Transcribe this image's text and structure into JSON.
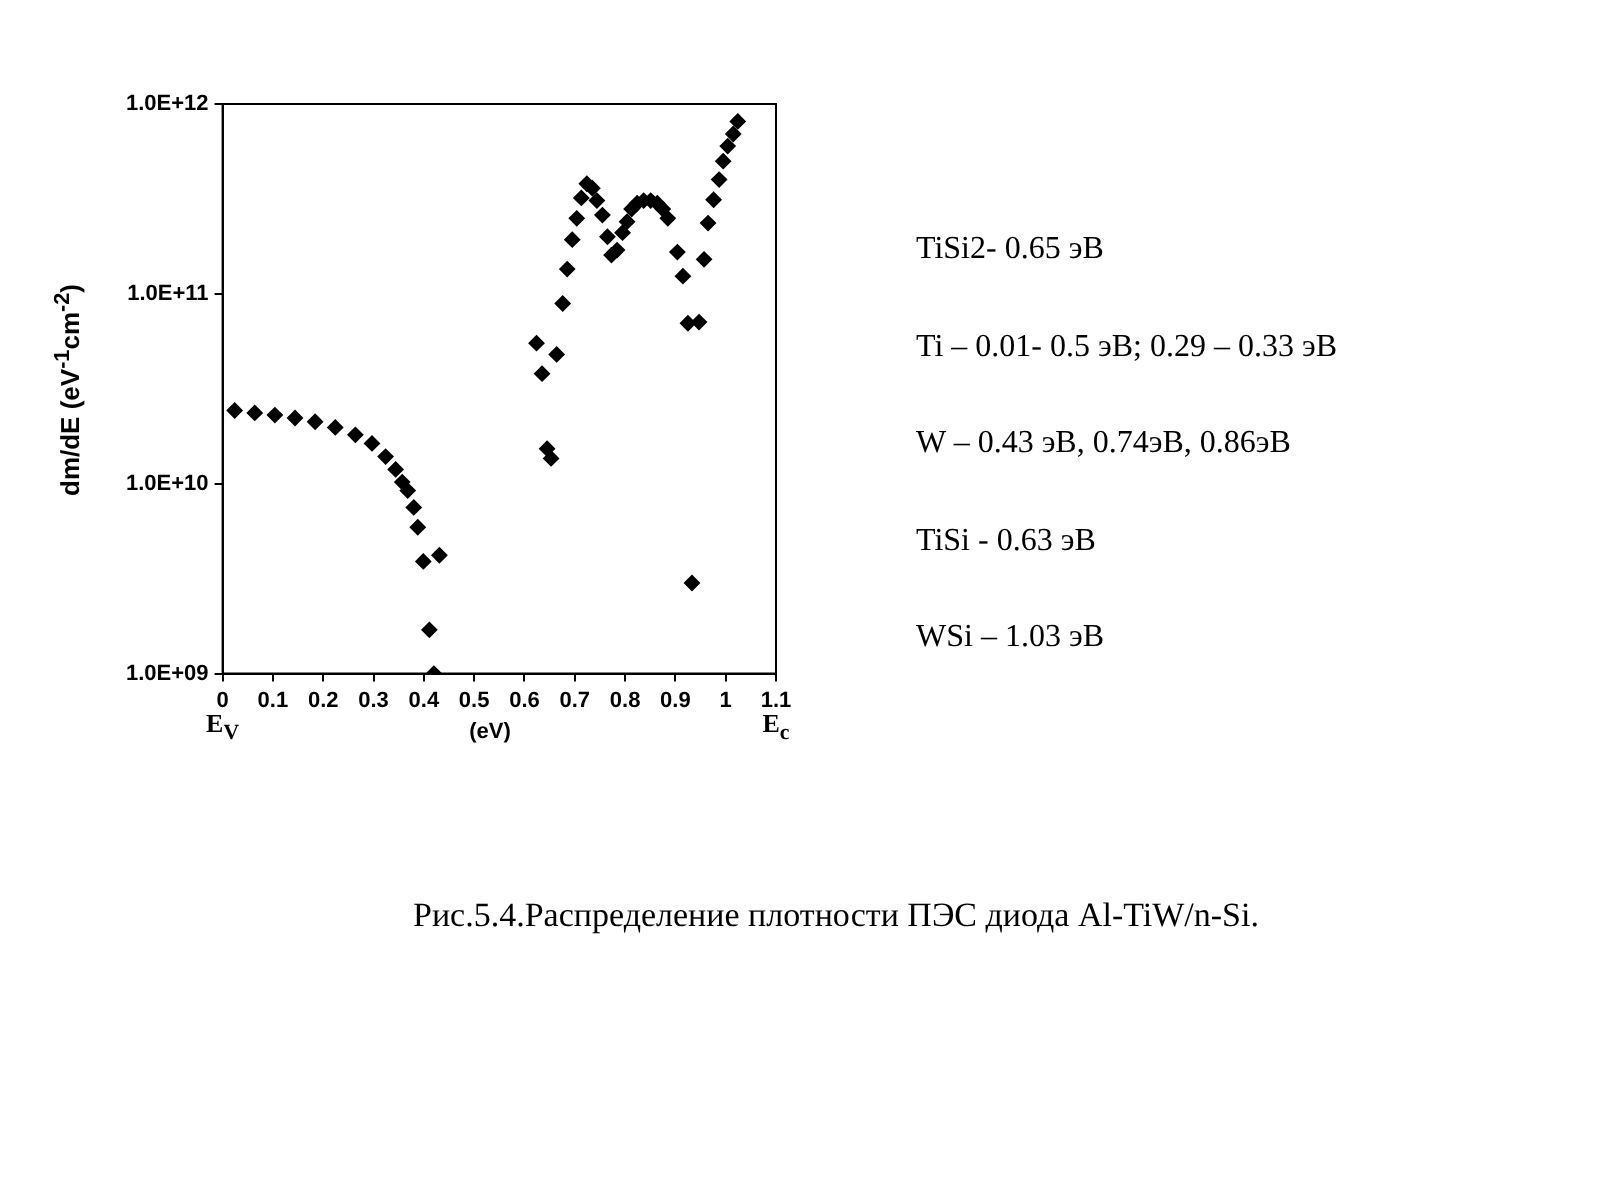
{
  "chart_data": {
    "type": "scatter",
    "xlabel": "(eV)",
    "ylabel": "dm/dE (eV$^{-1}$cm$^{-2}$)",
    "x": [
      0.024,
      0.064,
      0.104,
      0.144,
      0.184,
      0.224,
      0.264,
      0.297,
      0.324,
      0.344,
      0.357,
      0.368,
      0.38,
      0.388,
      0.399,
      0.411,
      0.42,
      0.431,
      0.624,
      0.635,
      0.645,
      0.653,
      0.664,
      0.676,
      0.685,
      0.695,
      0.704,
      0.713,
      0.724,
      0.735,
      0.744,
      0.755,
      0.765,
      0.773,
      0.784,
      0.795,
      0.804,
      0.813,
      0.824,
      0.837,
      0.851,
      0.864,
      0.875,
      0.885,
      0.904,
      0.915,
      0.925,
      0.933,
      0.947,
      0.957,
      0.965,
      0.976,
      0.987,
      0.995,
      1.004,
      1.015,
      1.024
    ],
    "series": [
      {
        "color": "#000000",
        "values": [
          24300000000.0,
          23600000000.0,
          23000000000.0,
          22200000000.0,
          21200000000.0,
          19800000000.0,
          18100000000.0,
          16300000000.0,
          13900000000.0,
          11900000000.0,
          10200000000.0,
          9200000000.0,
          7500000000.0,
          5900000000.0,
          3900000000.0,
          1700000000.0,
          1000000000.0,
          4200000000.0,
          55000000000.0,
          38000000000.0,
          15300000000.0,
          13600000000.0,
          48000000000.0,
          89000000000.0,
          135000000000.0,
          193000000000.0,
          250000000000.0,
          320000000000.0,
          380000000000.0,
          360000000000.0,
          310000000000.0,
          260000000000.0,
          200000000000.0,
          160000000000.0,
          170000000000.0,
          210000000000.0,
          240000000000.0,
          280000000000.0,
          300000000000.0,
          310000000000.0,
          310000000000.0,
          300000000000.0,
          280000000000.0,
          250000000000.0,
          166000000000.0,
          124000000000.0,
          70000000000.0,
          3000000000.0,
          71000000000.0,
          152000000000.0,
          236000000000.0,
          313000000000.0,
          400000000000.0,
          500000000000.0,
          600000000000.0,
          695000000000.0,
          810000000000.0
        ]
      }
    ],
    "xlim": [
      0,
      1.1
    ],
    "xticks": [
      0,
      0.1,
      0.2,
      0.3,
      0.4,
      0.5,
      0.6,
      0.7,
      0.8,
      0.9,
      1,
      1.1
    ],
    "ylim": [
      1000000000.0,
      1000000000000.0
    ],
    "yticks": [
      {
        "value": 1000000000.0,
        "label": "1.0E+09"
      },
      {
        "value": 10000000000.0,
        "label": "1.0E+10"
      },
      {
        "value": 100000000000.0,
        "label": "1.0E+11"
      },
      {
        "value": 1000000000000.0,
        "label": "1.0E+12"
      }
    ],
    "log": "y",
    "grid": false,
    "legend": false,
    "marker": "diamond",
    "annotations": [
      "E$_{V}$",
      "E$_{c}$",
      "TiSi2- 0.65 эВ",
      "Ti – 0.01- 0.5 эВ; 0.29 – 0.33 эВ",
      "W – 0.43 эВ, 0.74эВ, 0.86эВ",
      "TiSi -  0.63 эВ",
      "WSi – 1.03 эВ",
      "Рис.5.4.Распределение  плотности ПЭС диода Al-TiW/n-Si."
    ]
  }
}
